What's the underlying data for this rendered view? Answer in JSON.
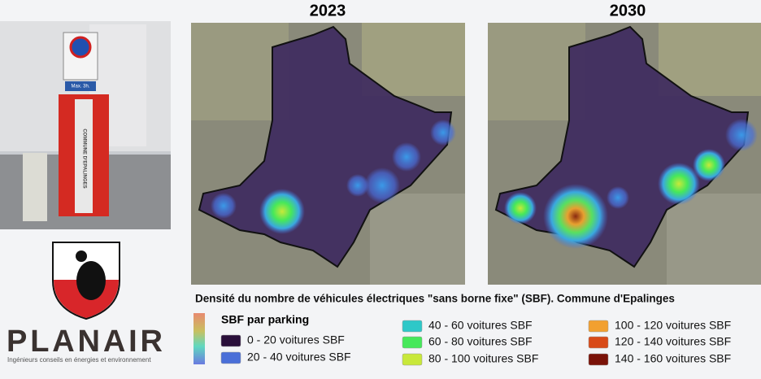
{
  "photo": {
    "sign": "Max. 3h.",
    "station": "COMMUNE D'EPALINGES"
  },
  "maps": [
    {
      "title": "2023"
    },
    {
      "title": "2030"
    }
  ],
  "caption": "Densité du nombre de véhicules électriques \"sans borne fixe\" (SBF). Commune d'Epalinges",
  "legend": {
    "title": "SBF par parking",
    "items": [
      {
        "label": "0 - 20 voitures SBF",
        "color": "#2a0f3a"
      },
      {
        "label": "20 - 40 voitures SBF",
        "color": "#4a6fd8"
      },
      {
        "label": "40 - 60 voitures SBF",
        "color": "#2ec8c8"
      },
      {
        "label": "60 - 80 voitures SBF",
        "color": "#46e85a"
      },
      {
        "label": "80 - 100 voitures SBF",
        "color": "#c8e83a"
      },
      {
        "label": "100 - 120 voitures SBF",
        "color": "#f2a030"
      },
      {
        "label": "120 - 140 voitures SBF",
        "color": "#d84a18"
      },
      {
        "label": "140 - 160 voitures SBF",
        "color": "#7a1208"
      }
    ]
  },
  "logo": {
    "name": "PLANAIR",
    "tagline": "Ingénieurs conseils en énergies et environnement"
  }
}
